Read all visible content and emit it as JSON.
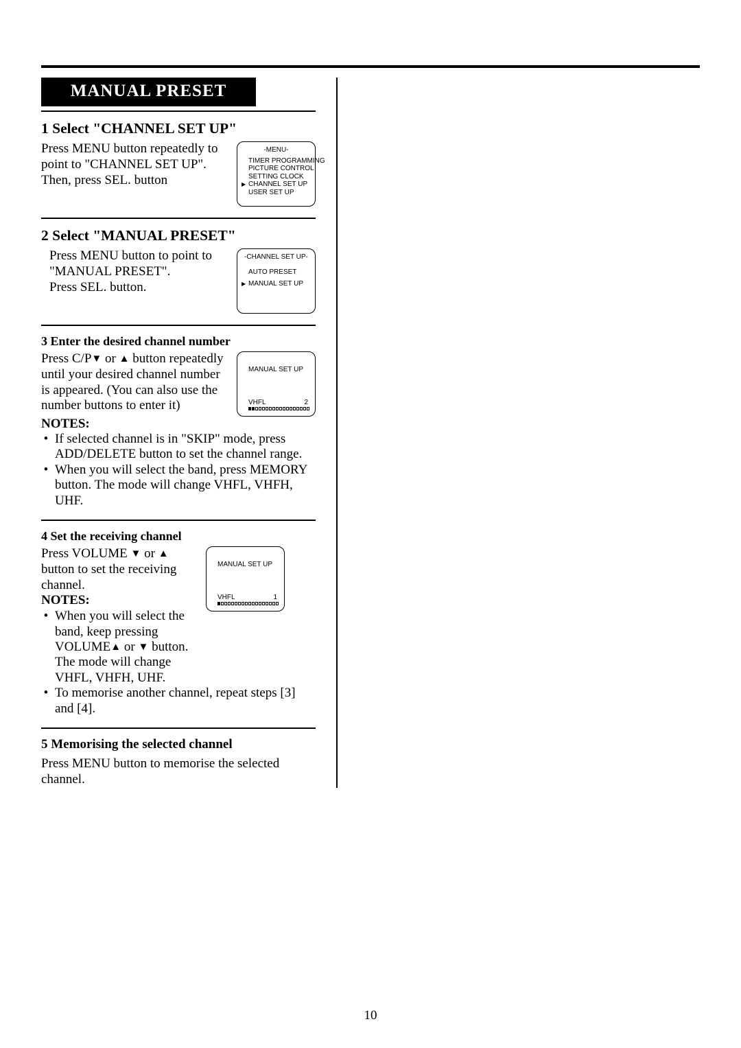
{
  "section_title": "MANUAL PRESET",
  "page_number": "10",
  "step1": {
    "heading": "1 Select \"CHANNEL SET UP\"",
    "body_l1": "Press MENU button repeatedly to point to \"CHANNEL SET UP\".",
    "body_l2": "Then, press SEL. button",
    "screen": {
      "title": "-MENU-",
      "items": [
        "TIMER PROGRAMMING",
        "PICTURE CONTROL",
        "SETTING CLOCK",
        "CHANNEL SET UP",
        "USER SET UP"
      ],
      "selected_index": 3
    }
  },
  "step2": {
    "heading": "2 Select \"MANUAL PRESET\"",
    "body_l1": "Press MENU button to point to \"MANUAL PRESET\".",
    "body_l2": "Press SEL. button.",
    "screen": {
      "title": "-CHANNEL SET UP-",
      "items": [
        "AUTO PRESET",
        "MANUAL SET UP"
      ],
      "selected_index": 1
    }
  },
  "step3": {
    "heading": "3 Enter the desired channel number",
    "body_prefix": "Press C/P",
    "body_mid": " or ",
    "body_suffix": " button repeatedly until your desired channel number is appeared. (You can also use the number buttons to enter it)",
    "notes_label": "NOTES:",
    "note1": "If selected channel is in \"SKIP\" mode, press ADD/DELETE button to set the channel range.",
    "note2": "When you will select the band, press MEMORY button. The mode will change VHFL, VHFH, UHF.",
    "screen": {
      "title": "MANUAL SET UP",
      "band": "VHFL",
      "value": "2",
      "filled_segments": 2,
      "total_segments": 18
    }
  },
  "step4": {
    "heading": "4 Set the receiving channel",
    "body_prefix": "Press VOLUME ",
    "body_mid": " or ",
    "body_suffix": "  button to set the receiving channel.",
    "notes_label": "NOTES:",
    "note1_a": "When you will select the band, keep pressing VOLUME",
    "note1_b": " or ",
    "note1_c": " button. The mode will change VHFL, VHFH, UHF.",
    "note2": "To memorise another channel, repeat steps [3] and [4].",
    "screen": {
      "title": "MANUAL SET UP",
      "band": "VHFL",
      "value": "1",
      "filled_segments": 1,
      "total_segments": 18
    }
  },
  "step5": {
    "heading": "5 Memorising the selected channel",
    "body": "Press MENU button to memorise the selected channel."
  }
}
